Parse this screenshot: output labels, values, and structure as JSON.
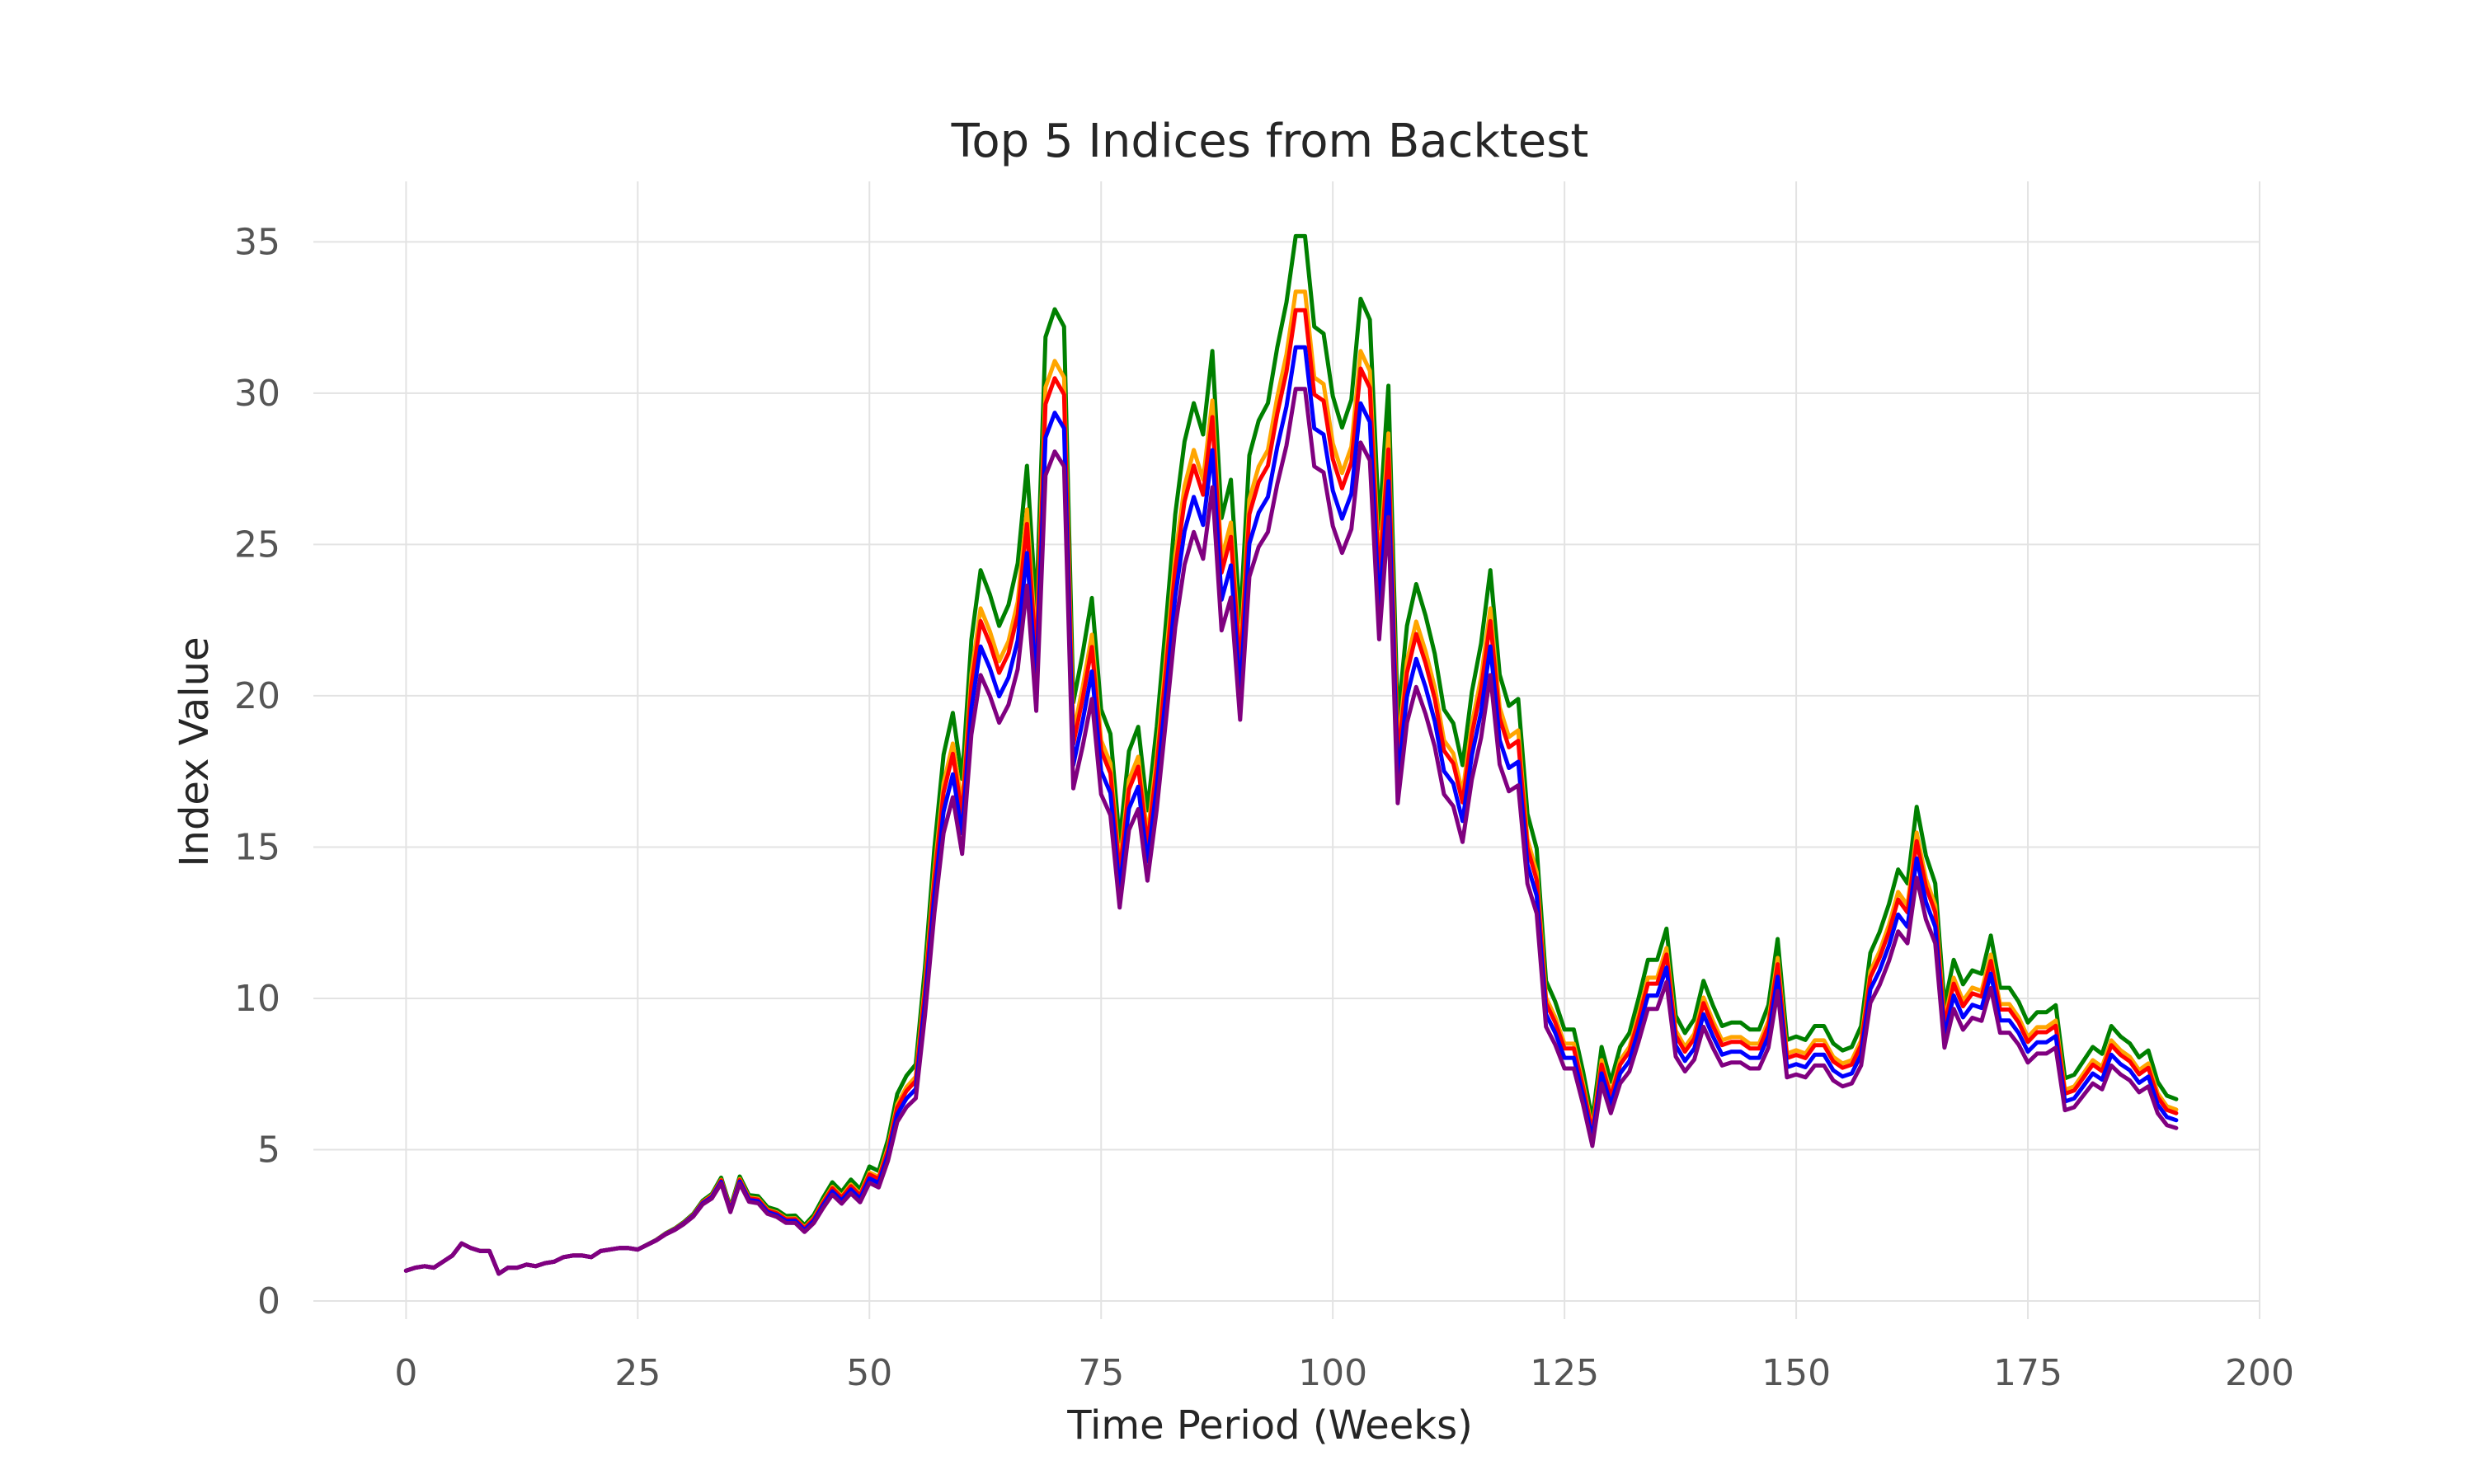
{
  "chart_data": {
    "type": "line",
    "title": "Top 5 Indices from Backtest",
    "xlabel": "Time Period (Weeks)",
    "ylabel": "Index Value",
    "xlim": [
      -10,
      200
    ],
    "ylim": [
      -0.6,
      37
    ],
    "xticks": [
      0,
      25,
      50,
      75,
      100,
      125,
      150,
      175,
      200
    ],
    "yticks": [
      0,
      5,
      10,
      15,
      20,
      25,
      30,
      35
    ],
    "grid": true,
    "legend": "none",
    "base": [
      1.0,
      1.1,
      1.15,
      1.1,
      1.3,
      1.5,
      1.9,
      1.75,
      1.65,
      1.65,
      0.9,
      1.1,
      1.1,
      1.2,
      1.15,
      1.25,
      1.3,
      1.45,
      1.5,
      1.5,
      1.45,
      1.65,
      1.7,
      1.75,
      1.75,
      1.7,
      1.85,
      2.0,
      2.2,
      2.35,
      2.55,
      2.8,
      3.2,
      3.4,
      3.9,
      2.95,
      3.9,
      3.3,
      3.25,
      2.9,
      2.8,
      2.6,
      2.6,
      2.3,
      2.6,
      3.1,
      3.55,
      3.25,
      3.6,
      3.3,
      3.95,
      3.8,
      4.7,
      6.0,
      6.5,
      6.8,
      9.6,
      13.0,
      15.7,
      16.9,
      15.0,
      19.0,
      21.0,
      20.3,
      19.4,
      20.0,
      21.2,
      24.0,
      19.8,
      27.7,
      28.5,
      28.0,
      17.2,
      18.6,
      20.2,
      17.0,
      16.3,
      13.2,
      15.8,
      16.5,
      14.1,
      16.5,
      19.5,
      22.6,
      24.7,
      25.8,
      24.9,
      27.3,
      22.5,
      23.6,
      19.5,
      24.3,
      25.3,
      25.8,
      27.4,
      28.7,
      30.6,
      30.6,
      28.0,
      27.8,
      26.0,
      25.1,
      25.9,
      28.8,
      28.2,
      22.2,
      26.3,
      16.7,
      19.4,
      20.6,
      19.7,
      18.6,
      17.0,
      16.6,
      15.4,
      17.5,
      18.9,
      21.0,
      18.0,
      17.1,
      17.3,
      14.0,
      13.0,
      9.2,
      8.6,
      7.8,
      7.8,
      6.6,
      5.2,
      7.3,
      6.3,
      7.3,
      7.7,
      8.7,
      9.8,
      9.8,
      10.7,
      8.2,
      7.7,
      8.1,
      9.2,
      8.5,
      7.9,
      8.0,
      8.0,
      7.8,
      7.8,
      8.5,
      10.4,
      7.5,
      7.6,
      7.5,
      7.9,
      7.9,
      7.4,
      7.2,
      7.3,
      7.9,
      10.0,
      10.6,
      11.4,
      12.4,
      12.0,
      14.2,
      12.8,
      12.0,
      8.5,
      9.8,
      9.1,
      9.5,
      9.4,
      10.5,
      9.0,
      9.0,
      8.6,
      8.0,
      8.3,
      8.3,
      8.5,
      6.4,
      6.5,
      6.9,
      7.3,
      7.1,
      7.9,
      7.6,
      7.4,
      7.0,
      7.2,
      6.3,
      5.9,
      5.8
    ],
    "series": [
      {
        "color": "#008000",
        "factor": 1.15
      },
      {
        "color": "#ffa500",
        "factor": 1.09
      },
      {
        "color": "#ff0000",
        "factor": 1.07
      },
      {
        "color": "#0000ff",
        "factor": 1.03
      },
      {
        "color": "#800080",
        "factor": 0.985
      }
    ],
    "divergence": {
      "start_week": 25,
      "ramp_weeks": 30
    }
  }
}
